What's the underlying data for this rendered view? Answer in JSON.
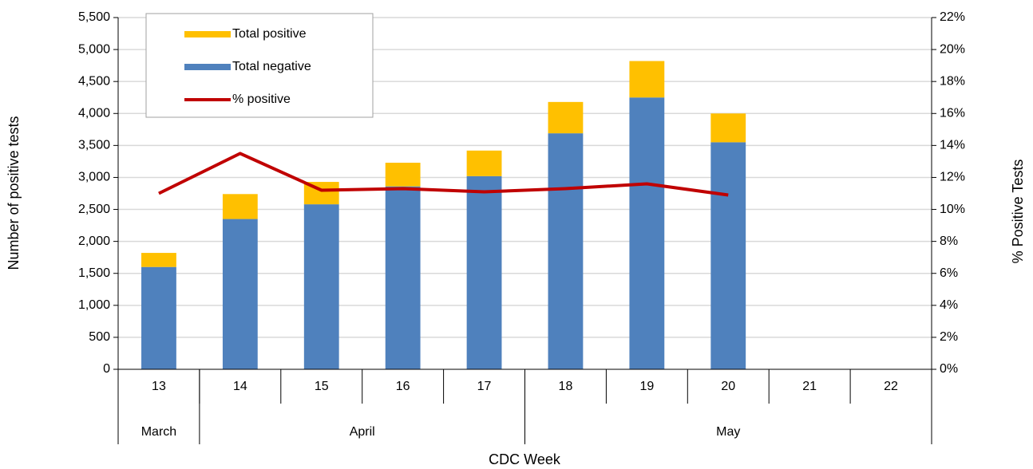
{
  "chart_data": {
    "type": "bar",
    "stacked": true,
    "x_label": "CDC Week",
    "y_label": "Number of positive tests",
    "y2_label": "% Positive Tests",
    "categories": [
      "13",
      "14",
      "15",
      "16",
      "17",
      "18",
      "19",
      "20",
      "21",
      "22"
    ],
    "month_groups": [
      {
        "label": "March",
        "count": 1
      },
      {
        "label": "April",
        "count": 4
      },
      {
        "label": "May",
        "count": 5
      }
    ],
    "series": [
      {
        "name": "Total positive",
        "color": "#ffc000",
        "type": "bar",
        "values": [
          220,
          390,
          350,
          370,
          400,
          490,
          570,
          450,
          null,
          null
        ]
      },
      {
        "name": "Total negative",
        "color": "#4f81bd",
        "type": "bar",
        "values": [
          1600,
          2350,
          2580,
          2860,
          3020,
          3690,
          4250,
          3550,
          null,
          null
        ]
      },
      {
        "name": "% positive",
        "color": "#c00000",
        "type": "line",
        "axis": "y2",
        "values": [
          11.0,
          13.5,
          11.2,
          11.3,
          11.1,
          11.3,
          11.6,
          10.9,
          null,
          null
        ]
      }
    ],
    "ylim": [
      0,
      5500
    ],
    "yticks": [
      0,
      500,
      {
        "value": 1000,
        "label": "1,000"
      },
      {
        "value": 1500,
        "label": "1,500"
      },
      {
        "value": 2000,
        "label": "2,000"
      },
      {
        "value": 2500,
        "label": "2,500"
      },
      {
        "value": 3000,
        "label": "3,000"
      },
      {
        "value": 3500,
        "label": "3,500"
      },
      {
        "value": 4000,
        "label": "4,000"
      },
      {
        "value": 4500,
        "label": "4,500"
      },
      {
        "value": 5000,
        "label": "5,000"
      },
      {
        "value": 5500,
        "label": "5,500"
      }
    ],
    "y2lim": [
      0,
      22
    ],
    "y2ticks": [
      {
        "value": 0,
        "label": "0%"
      },
      {
        "value": 2,
        "label": "2%"
      },
      {
        "value": 4,
        "label": "4%"
      },
      {
        "value": 6,
        "label": "6%"
      },
      {
        "value": 8,
        "label": "8%"
      },
      {
        "value": 10,
        "label": "10%"
      },
      {
        "value": 12,
        "label": "12%"
      },
      {
        "value": 14,
        "label": "14%"
      },
      {
        "value": 16,
        "label": "16%"
      },
      {
        "value": 18,
        "label": "18%"
      },
      {
        "value": 20,
        "label": "20%"
      },
      {
        "value": 22,
        "label": "22%"
      }
    ],
    "grid": true,
    "legend_position": "upper-left"
  }
}
